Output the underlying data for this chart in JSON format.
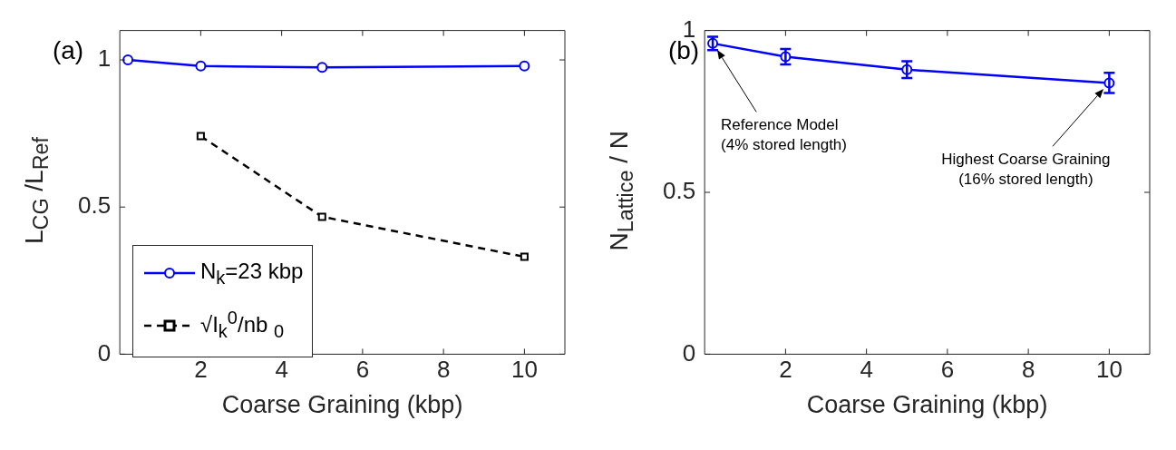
{
  "chart_data": [
    {
      "type": "line",
      "title": "(a)",
      "xlabel": "Coarse Graining (kbp)",
      "ylabel": "L$_{CG}$ /L$_{Ref}$",
      "xlim": [
        0,
        11
      ],
      "xticks": [
        2,
        4,
        6,
        8,
        10
      ],
      "ylim": [
        0,
        1.1
      ],
      "yticks": [
        0,
        0.5,
        1
      ],
      "grid": false,
      "legend": "bottom left",
      "series": [
        {
          "name": "N$_{k}$=23 kbp",
          "color": "#0000ff",
          "x": [
            0.2,
            2,
            5,
            10
          ],
          "values": [
            1.0,
            0.979,
            0.975,
            0.979
          ],
          "marker": "circle",
          "line_style": "solid"
        },
        {
          "name": "√I$_{k}$$^{0}$/nb $_{0}$",
          "color": "#000000",
          "x": [
            2,
            5,
            10
          ],
          "values": [
            0.741,
            0.467,
            0.331
          ],
          "marker": "square",
          "line_style": "dashed"
        }
      ]
    },
    {
      "type": "line",
      "title": "(b)",
      "xlabel": "Coarse Graining (kbp)",
      "ylabel": "N$_{Lattice}$ / N",
      "xlim": [
        0,
        11
      ],
      "xticks": [
        2,
        4,
        6,
        8,
        10
      ],
      "ylim": [
        0,
        1
      ],
      "yticks": [
        0,
        0.5,
        1
      ],
      "grid": false,
      "legend": false,
      "series": [
        {
          "color": "#0000ff",
          "x": [
            0.2,
            2,
            5,
            10
          ],
          "values": [
            0.96,
            0.919,
            0.879,
            0.838
          ],
          "errors": [
            0.021,
            0.024,
            0.026,
            0.031
          ],
          "marker": "circle",
          "line_style": "solid"
        }
      ],
      "annotations": [
        "Reference Model\n(4% stored length)",
        "Highest Coarse Graining\n(16% stored length)"
      ]
    }
  ]
}
